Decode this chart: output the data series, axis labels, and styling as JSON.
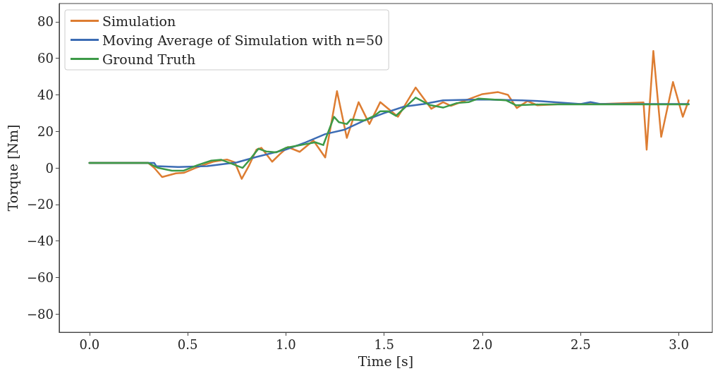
{
  "chart_data": {
    "type": "line",
    "xlabel": "Time [s]",
    "ylabel": "Torque [Nm]",
    "xlim": [
      -0.154,
      3.17
    ],
    "ylim": [
      -90,
      90
    ],
    "xticks": [
      {
        "value": 0,
        "label": "0.0"
      },
      {
        "value": 0.5,
        "label": "0.5"
      },
      {
        "value": 1,
        "label": "1.0"
      },
      {
        "value": 1.5,
        "label": "1.5"
      },
      {
        "value": 2,
        "label": "2.0"
      },
      {
        "value": 2.5,
        "label": "2.5"
      },
      {
        "value": 3,
        "label": "3.0"
      }
    ],
    "yticks": [
      {
        "value": -80,
        "label": "−80"
      },
      {
        "value": -60,
        "label": "−60"
      },
      {
        "value": -40,
        "label": "−40"
      },
      {
        "value": -20,
        "label": "−20"
      },
      0,
      20,
      40,
      60,
      80
    ],
    "grid": false,
    "legend": "top left",
    "marker": "none",
    "line_style": "solid",
    "series": [
      {
        "name": "Simulation",
        "color": "#dd7d32",
        "x": [
          0,
          0.3,
          0.33,
          0.37,
          0.44,
          0.48,
          0.54,
          0.63,
          0.7,
          0.74,
          0.775,
          0.81,
          0.85,
          0.875,
          0.93,
          0.97,
          1.01,
          1.07,
          1.14,
          1.2,
          1.26,
          1.31,
          1.37,
          1.425,
          1.48,
          1.57,
          1.66,
          1.74,
          1.8,
          1.84,
          1.94,
          2.0,
          2.08,
          2.13,
          2.175,
          2.23,
          2.28,
          2.4,
          2.6,
          2.82,
          2.836,
          2.87,
          2.91,
          2.97,
          3.02,
          3.05
        ],
        "values": [
          2.7,
          2.7,
          0,
          -5,
          -3,
          -2.7,
          0,
          3.4,
          4.6,
          3,
          -6,
          0.8,
          10,
          11,
          3.4,
          7.6,
          11.4,
          8.8,
          15,
          5.7,
          42,
          16.4,
          36,
          24,
          36,
          28,
          44,
          32.4,
          36,
          34,
          38,
          40.4,
          41.5,
          40,
          32.8,
          36.6,
          34.3,
          35,
          35,
          35.8,
          10,
          64,
          17,
          47,
          28,
          37
        ]
      },
      {
        "name": "Moving Average of Simulation with n=50",
        "color": "#3c6cb4",
        "x": [
          0,
          0.33,
          0.34,
          0.45,
          0.6,
          0.75,
          0.85,
          1.0,
          1.1,
          1.2,
          1.3,
          1.4,
          1.5,
          1.6,
          1.7,
          1.8,
          2.0,
          2.2,
          2.3,
          2.5,
          2.55,
          2.6,
          3.05
        ],
        "values": [
          2.7,
          2.7,
          1,
          0.5,
          1,
          3,
          6,
          10,
          14,
          18.5,
          21,
          26,
          30,
          33.5,
          35,
          37,
          37.5,
          37,
          36.5,
          35,
          36,
          35,
          35
        ]
      },
      {
        "name": "Ground Truth",
        "color": "#3d9a48",
        "x": [
          0,
          0.3,
          0.35,
          0.42,
          0.48,
          0.55,
          0.62,
          0.67,
          0.72,
          0.78,
          0.82,
          0.86,
          0.9,
          0.95,
          1.0,
          1.05,
          1.1,
          1.15,
          1.19,
          1.245,
          1.27,
          1.31,
          1.33,
          1.4,
          1.45,
          1.48,
          1.52,
          1.56,
          1.66,
          1.73,
          1.8,
          1.87,
          1.93,
          1.98,
          2.12,
          2.17,
          2.3,
          3.05
        ],
        "values": [
          2.7,
          2.7,
          0,
          -1.5,
          -1.5,
          1.5,
          4,
          4.5,
          2.5,
          0,
          5,
          10.5,
          9,
          8.5,
          11,
          12,
          13,
          14,
          12.5,
          28,
          25,
          24,
          26.5,
          26,
          28.5,
          31,
          31,
          28.5,
          38.5,
          34.5,
          33,
          35.5,
          36,
          38,
          37,
          34.3,
          34.8,
          34.8
        ]
      }
    ]
  }
}
